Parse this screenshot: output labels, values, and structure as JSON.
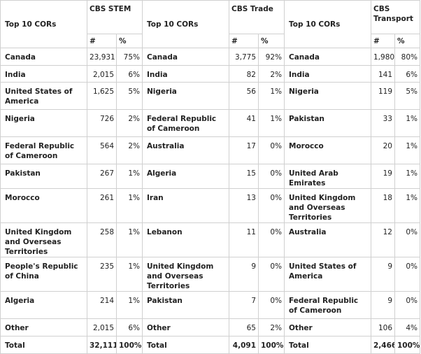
{
  "groups": [
    {
      "label": "Top 10 CORs",
      "title": "CBS STEM"
    },
    {
      "label": "Top 10 CORs",
      "title": "CBS Trade"
    },
    {
      "label": "Top 10 CORs",
      "title": "CBS Transport"
    }
  ],
  "sub_headers": {
    "count": "#",
    "pct": "%"
  },
  "rows": [
    {
      "h": 25,
      "c": [
        [
          "Canada",
          "23,931",
          "75%"
        ],
        [
          "Canada",
          "3,775",
          "92%"
        ],
        [
          "Canada",
          "1,980",
          "80%"
        ]
      ]
    },
    {
      "h": 24,
      "c": [
        [
          "India",
          "2,015",
          "6%"
        ],
        [
          "India",
          "82",
          "2%"
        ],
        [
          "India",
          "141",
          "6%"
        ]
      ]
    },
    {
      "h": 39,
      "c": [
        [
          "United States of America",
          "1,625",
          "5%"
        ],
        [
          "Nigeria",
          "56",
          "1%"
        ],
        [
          "Nigeria",
          "119",
          "5%"
        ]
      ]
    },
    {
      "h": 39,
      "c": [
        [
          "Nigeria",
          "726",
          "2%"
        ],
        [
          "Federal Republic of Cameroon",
          "41",
          "1%"
        ],
        [
          "Pakistan",
          "33",
          "1%"
        ]
      ]
    },
    {
      "h": 39,
      "c": [
        [
          "Federal Republic of Cameroon",
          "564",
          "2%"
        ],
        [
          "Australia",
          "17",
          "0%"
        ],
        [
          "Morocco",
          "20",
          "1%"
        ]
      ]
    },
    {
      "h": 24,
      "c": [
        [
          "Pakistan",
          "267",
          "1%"
        ],
        [
          "Algeria",
          "15",
          "0%"
        ],
        [
          "United Arab Emirates",
          "19",
          "1%"
        ]
      ]
    },
    {
      "h": 40,
      "c": [
        [
          "Morocco",
          "261",
          "1%"
        ],
        [
          "Iran",
          "13",
          "0%"
        ],
        [
          "United Kingdom and Overseas Territories",
          "18",
          "1%"
        ]
      ]
    },
    {
      "h": 39,
      "c": [
        [
          "United Kingdom and Overseas Territories",
          "258",
          "1%"
        ],
        [
          "Lebanon",
          "11",
          "0%"
        ],
        [
          "Australia",
          "12",
          "0%"
        ]
      ]
    },
    {
      "h": 39,
      "c": [
        [
          "People's Republic of China",
          "235",
          "1%"
        ],
        [
          "United Kingdom and Overseas Territories",
          "9",
          "0%"
        ],
        [
          "United States of America",
          "9",
          "0%"
        ]
      ]
    },
    {
      "h": 39,
      "c": [
        [
          "Algeria",
          "214",
          "1%"
        ],
        [
          "Pakistan",
          "7",
          "0%"
        ],
        [
          "Federal Republic of Cameroon",
          "9",
          "0%"
        ]
      ]
    },
    {
      "h": 25,
      "c": [
        [
          "Other",
          "2,015",
          "6%"
        ],
        [
          "Other",
          "65",
          "2%"
        ],
        [
          "Other",
          "106",
          "4%"
        ]
      ]
    }
  ],
  "total": [
    [
      "Total",
      "32,111",
      "100%"
    ],
    [
      "Total",
      "4,091",
      "100%"
    ],
    [
      "Total",
      "2,466",
      "100%"
    ]
  ]
}
